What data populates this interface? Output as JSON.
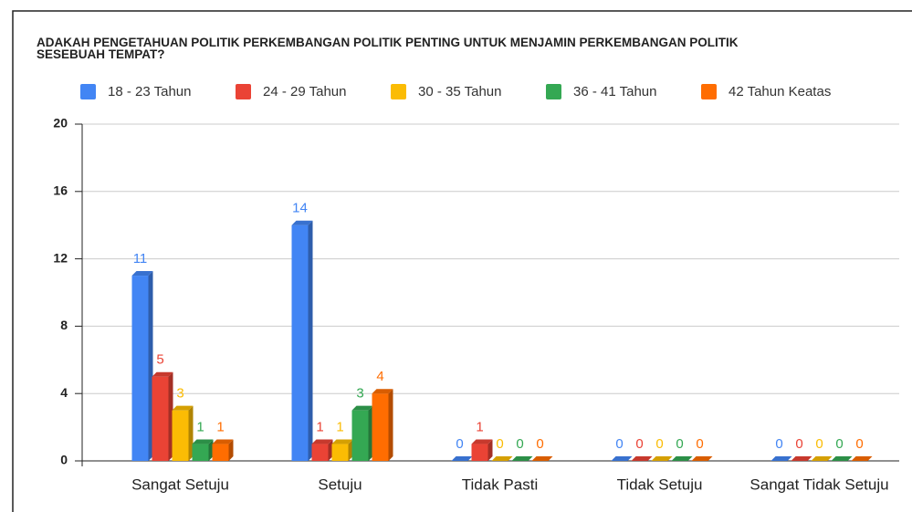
{
  "chart_data": {
    "type": "bar",
    "title": "ADAKAH PENGETAHUAN POLITIK  PERKEMBANGAN POLITIK PENTING UNTUK MENJAMIN PERKEMBANGAN POLITIK SESEBUAH TEMPAT?",
    "categories": [
      "Sangat Setuju",
      "Setuju",
      "Tidak Pasti",
      "Tidak Setuju",
      "Sangat Tidak Setuju"
    ],
    "series": [
      {
        "name": "18 - 23 Tahun",
        "color": "#4285f4",
        "values": [
          11,
          14,
          0,
          0,
          0
        ]
      },
      {
        "name": "24 - 29 Tahun",
        "color": "#ea4335",
        "values": [
          5,
          1,
          1,
          0,
          0
        ]
      },
      {
        "name": "30 - 35 Tahun",
        "color": "#fbbc04",
        "values": [
          3,
          1,
          0,
          0,
          0
        ]
      },
      {
        "name": "36 - 41 Tahun",
        "color": "#34a853",
        "values": [
          1,
          3,
          0,
          0,
          0
        ]
      },
      {
        "name": "42 Tahun Keatas",
        "color": "#ff6d01",
        "values": [
          1,
          4,
          0,
          0,
          0
        ]
      }
    ],
    "ylim": [
      0,
      20
    ],
    "yticks": [
      0,
      4,
      8,
      12,
      16,
      20
    ],
    "grid": true,
    "legend": "top"
  }
}
